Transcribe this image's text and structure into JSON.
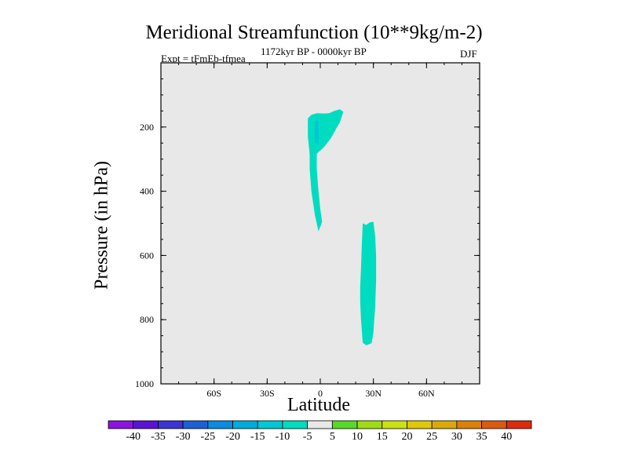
{
  "chart_data": {
    "type": "contour",
    "title": "Meridional Streamfunction (10**9kg/m-2)",
    "subtitle_left": "Expt = tFmEb-tfmea",
    "subtitle_center": "1172kyr BP - 0000kyr BP",
    "subtitle_right": "DJF",
    "xlabel": "Latitude",
    "ylabel": "Pressure (in hPa)",
    "xlim": [
      -90,
      90
    ],
    "ylim": [
      1000,
      0
    ],
    "x_major_ticks": [
      -60,
      -30,
      0,
      30,
      60
    ],
    "x_tick_labels": [
      "60S",
      "30S",
      "0",
      "30N",
      "60N"
    ],
    "x_minor_step": 10,
    "y_major_ticks": [
      200,
      400,
      600,
      800,
      1000
    ],
    "y_tick_labels": [
      "200",
      "400",
      "600",
      "800",
      "1000"
    ],
    "y_minor_step": 50,
    "background_color": "#e8e8e8",
    "regions": [
      {
        "name": "upper-negative-cell",
        "level_range": [
          -10,
          -5
        ],
        "color": "#00dcc0",
        "outline": [
          [
            -7,
            173
          ],
          [
            -5,
            162
          ],
          [
            -2,
            157
          ],
          [
            2,
            158
          ],
          [
            5,
            157
          ],
          [
            8,
            150
          ],
          [
            11,
            145
          ],
          [
            13,
            152
          ],
          [
            12,
            170
          ],
          [
            11,
            186
          ],
          [
            9,
            205
          ],
          [
            6,
            235
          ],
          [
            2,
            263
          ],
          [
            -2,
            283
          ],
          [
            -2,
            330
          ],
          [
            -1,
            400
          ],
          [
            0,
            455
          ],
          [
            1,
            495
          ],
          [
            -1,
            525
          ],
          [
            -3,
            475
          ],
          [
            -5,
            400
          ],
          [
            -6,
            330
          ],
          [
            -6,
            285
          ],
          [
            -7,
            230
          ]
        ]
      },
      {
        "name": "upper-core",
        "level_range": [
          -15,
          -10
        ],
        "color": "#00c4d8",
        "outline": [
          [
            -3,
            180
          ],
          [
            -1,
            180
          ],
          [
            -1,
            250
          ],
          [
            -3,
            250
          ]
        ]
      },
      {
        "name": "lower-negative-cell",
        "level_range": [
          -10,
          -5
        ],
        "color": "#00dcc0",
        "outline": [
          [
            24,
            500
          ],
          [
            26,
            505
          ],
          [
            28,
            497
          ],
          [
            30,
            495
          ],
          [
            31,
            540
          ],
          [
            31.5,
            600
          ],
          [
            31.5,
            680
          ],
          [
            31,
            760
          ],
          [
            30,
            840
          ],
          [
            29,
            873
          ],
          [
            26,
            880
          ],
          [
            24,
            872
          ],
          [
            23,
            800
          ],
          [
            22.5,
            740
          ],
          [
            22.5,
            700
          ],
          [
            23,
            640
          ],
          [
            23.5,
            560
          ]
        ]
      }
    ],
    "colorbar": {
      "levels": [
        -40,
        -35,
        -30,
        -25,
        -20,
        -15,
        -10,
        -5,
        5,
        10,
        15,
        20,
        25,
        30,
        35,
        40
      ],
      "labels": [
        "-40",
        "-35",
        "-30",
        "-25",
        "-20",
        "-15",
        "-10",
        "-5",
        "5",
        "10",
        "15",
        "20",
        "25",
        "30",
        "35",
        "40"
      ],
      "colors": [
        "#8a14e0",
        "#5a14d6",
        "#3c34d4",
        "#1c60d8",
        "#0a8ce0",
        "#00acdc",
        "#00c8d4",
        "#00dcc0",
        "#e8e8e8",
        "#58d82a",
        "#9edc14",
        "#cce012",
        "#e0c808",
        "#dca808",
        "#dc8008",
        "#dc5a10",
        "#dc2c0c"
      ]
    }
  }
}
